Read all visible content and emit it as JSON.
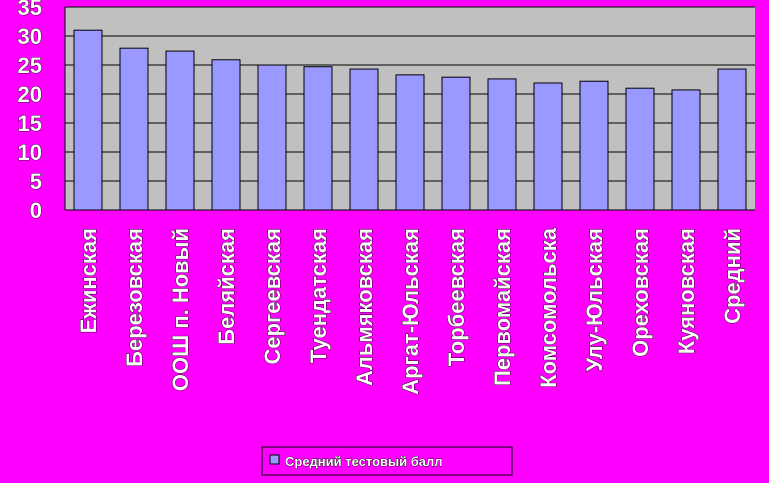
{
  "chart_data": {
    "type": "bar",
    "categories": [
      "Ежинская",
      "Березовская",
      "ООШ п. Новый",
      "Беляйская",
      "Сергеевская",
      "Туендатская",
      "Альмяковская",
      "Аргат-Юльская",
      "Торбеевская",
      "Первомайская",
      "Комсомольска",
      "Улу-Юльская",
      "Ореховская",
      "Куяновская",
      "Средний"
    ],
    "series": [
      {
        "name": "Средний тестовый балл",
        "color": "#9999ff",
        "values": [
          31,
          27.9,
          27.4,
          25.9,
          25,
          24.7,
          24.3,
          23.3,
          22.9,
          22.6,
          21.9,
          22.2,
          21,
          20.7,
          24.3
        ]
      }
    ],
    "ylim": [
      0,
      35
    ],
    "yticks": [
      0,
      5,
      10,
      15,
      20,
      25,
      30,
      35
    ],
    "grid": true,
    "legend": "bottom"
  }
}
